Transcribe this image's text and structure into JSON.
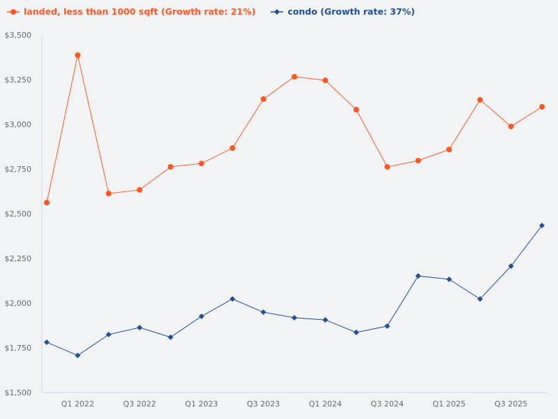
{
  "chart_data": {
    "type": "line",
    "title": "",
    "xlabel": "",
    "ylabel": "",
    "ylim": [
      1500,
      3500
    ],
    "xlim": [
      0,
      16
    ],
    "y_ticks": [
      1500,
      1750,
      2000,
      2250,
      2500,
      2750,
      3000,
      3250,
      3500
    ],
    "y_tick_labels": [
      "$1,500",
      "$1,750",
      "$2,000",
      "$2,250",
      "$2,500",
      "$2,750",
      "$3,000",
      "$3,250",
      "$3,500"
    ],
    "x_ticks": [
      {
        "x": 1,
        "label": "Q1 2022"
      },
      {
        "x": 3,
        "label": "Q3 2022"
      },
      {
        "x": 5,
        "label": "Q1 2023"
      },
      {
        "x": 7,
        "label": "Q3 2023"
      },
      {
        "x": 9,
        "label": "Q1 2024"
      },
      {
        "x": 11,
        "label": "Q3 2024"
      },
      {
        "x": 13,
        "label": "Q1 2025"
      },
      {
        "x": 15,
        "label": "Q3 2025"
      }
    ],
    "x": [
      0,
      1,
      2,
      3,
      4,
      5,
      6,
      7,
      8,
      9,
      10,
      11,
      12,
      13,
      14,
      15,
      16
    ],
    "grid": false,
    "legend_placement": "top-left",
    "series": [
      {
        "name": "landed, less than 1000 sqft (Growth rate: 21%)",
        "color": "#ff5722",
        "marker": "circle",
        "values": [
          2562,
          3387,
          2613,
          2633,
          2762,
          2781,
          2867,
          3141,
          3266,
          3246,
          3082,
          2762,
          2797,
          2859,
          3137,
          2988,
          3098
        ]
      },
      {
        "name": "condo (Growth rate: 37%)",
        "color": "#1f4e9e",
        "marker": "diamond",
        "values": [
          1781,
          1707,
          1824,
          1863,
          1809,
          1926,
          2023,
          1949,
          1918,
          1906,
          1836,
          1871,
          2152,
          2133,
          2023,
          2207,
          2434
        ]
      }
    ]
  }
}
